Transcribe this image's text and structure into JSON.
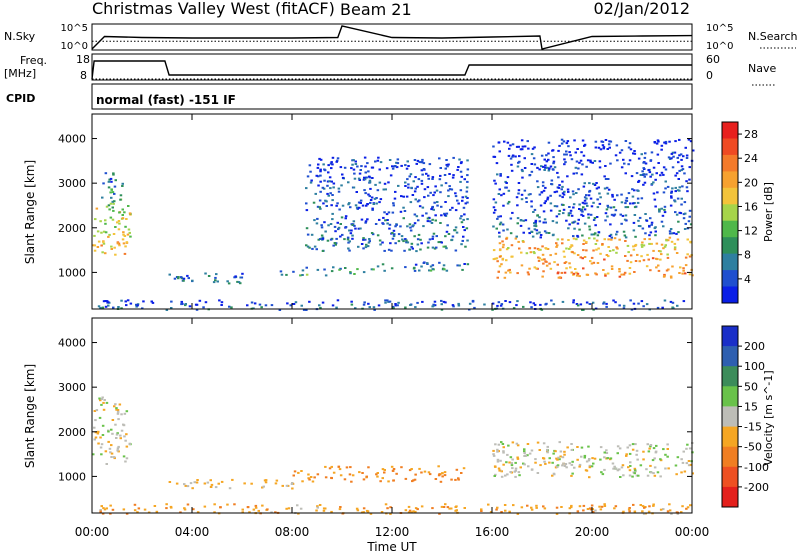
{
  "header": {
    "station": "Christmas Valley West (fitACF)",
    "beam": "Beam 21",
    "date": "02/Jan/2012"
  },
  "chart_data": [
    {
      "type": "line",
      "name": "noise-panel",
      "left_label": "N.Sky",
      "right_label": "N.Search",
      "left_ticks": [
        "10^5",
        "10^0"
      ],
      "right_ticks": [
        "10^5",
        "10^0"
      ],
      "series": [
        {
          "label_on_chart": "N.Sky",
          "style": "solid",
          "x": [
            "00:00",
            "00:30",
            "02:00",
            "04:00",
            "06:00",
            "08:00",
            "09:50",
            "10:00",
            "12:00",
            "14:00",
            "16:00",
            "17:55",
            "18:00",
            "20:00",
            "22:00",
            "24:00"
          ],
          "y_log10": [
            0.0,
            2.6,
            2.4,
            2.3,
            2.3,
            2.3,
            2.4,
            4.8,
            2.4,
            2.3,
            2.5,
            2.7,
            0.0,
            2.6,
            2.7,
            2.8
          ]
        },
        {
          "label_on_chart": "N.Search",
          "style": "dotted",
          "x": [
            "00:00",
            "06:00",
            "12:00",
            "18:00",
            "24:00"
          ],
          "y_log10": [
            1.6,
            1.6,
            1.6,
            1.6,
            1.6
          ]
        }
      ]
    },
    {
      "type": "line",
      "name": "freq-panel",
      "left_label": "Freq.",
      "left_unit": "[MHz]",
      "right_label": "Nave",
      "left_ticks": [
        "18",
        "8"
      ],
      "right_ticks": [
        "60",
        "0"
      ],
      "series": [
        {
          "label_on_chart": "Freq.",
          "style": "solid",
          "x": [
            "00:00",
            "00:05",
            "02:55",
            "03:05",
            "14:55",
            "15:05",
            "24:00"
          ],
          "y": [
            8,
            17,
            17,
            10,
            10,
            15,
            15
          ]
        },
        {
          "label_on_chart": "Nave",
          "style": "dotted",
          "x": [
            "00:00",
            "06:00",
            "12:00",
            "18:00",
            "24:00"
          ],
          "y": [
            8,
            8,
            8,
            8,
            8
          ]
        }
      ]
    },
    {
      "type": "text",
      "name": "cpid-panel",
      "left_label": "CPID",
      "text": "normal (fast) -151 IF"
    },
    {
      "type": "heatmap",
      "name": "power-panel",
      "ylabel": "Slant Range [km]",
      "yticks": [
        1000,
        2000,
        3000,
        4000
      ],
      "ylim": [
        180,
        4550
      ],
      "colorbar": {
        "label": "Power [dB]",
        "ticks": [
          "4",
          "8",
          "12",
          "16",
          "20",
          "24",
          "28"
        ],
        "colors": [
          "#0a1fe6",
          "#1f4fcf",
          "#2e7fa0",
          "#2e8f5a",
          "#4fb84a",
          "#a6d44a",
          "#f3c33a",
          "#f7a12f",
          "#f47a2a",
          "#ef4a23",
          "#e8201e"
        ]
      },
      "regions": [
        {
          "t0": 0.0,
          "t1": 1.5,
          "r0": 1300,
          "r1": 2600,
          "level": 20
        },
        {
          "t0": 0.3,
          "t1": 1.2,
          "r0": 2600,
          "r1": 3300,
          "level": 10
        },
        {
          "t0": 3.0,
          "t1": 6.0,
          "r0": 750,
          "r1": 1000,
          "level": 8
        },
        {
          "t0": 7.5,
          "t1": 11.0,
          "r0": 950,
          "r1": 1150,
          "level": 11
        },
        {
          "t0": 11.0,
          "t1": 15.0,
          "r0": 1050,
          "r1": 1250,
          "level": 9
        },
        {
          "t0": 8.5,
          "t1": 15.0,
          "r0": 1500,
          "r1": 3600,
          "level": 6
        },
        {
          "t0": 16.0,
          "t1": 24.0,
          "r0": 900,
          "r1": 1800,
          "level": 24
        },
        {
          "t0": 16.0,
          "t1": 24.0,
          "r0": 1800,
          "r1": 4000,
          "level": 5
        },
        {
          "t0": 0.0,
          "t1": 24.0,
          "r0": 180,
          "r1": 400,
          "level": 6
        }
      ]
    },
    {
      "type": "heatmap",
      "name": "velocity-panel",
      "ylabel": "Slant Range [km]",
      "yticks": [
        1000,
        2000,
        3000,
        4000
      ],
      "ylim": [
        180,
        4550
      ],
      "xlabel": "Time UT",
      "xticks": [
        "00:00",
        "04:00",
        "08:00",
        "12:00",
        "16:00",
        "20:00",
        "00:00"
      ],
      "colorbar": {
        "label": "Velocity [m s^-1]",
        "ticks": [
          "200",
          "100",
          "50",
          "15",
          "-15",
          "-50",
          "-100",
          "-200"
        ],
        "colors": [
          "#1a2fc8",
          "#2e5fb0",
          "#3c8c5a",
          "#69c24a",
          "#bdbdb7",
          "#f5a623",
          "#f07e22",
          "#ee5022",
          "#e4201c"
        ]
      },
      "regions": [
        {
          "t0": 0.0,
          "t1": 1.5,
          "r0": 1300,
          "r1": 2800,
          "level": 0
        },
        {
          "t0": 3.0,
          "t1": 8.0,
          "r0": 750,
          "r1": 950,
          "level": -20
        },
        {
          "t0": 8.0,
          "t1": 15.0,
          "r0": 900,
          "r1": 1250,
          "level": -60
        },
        {
          "t0": 16.0,
          "t1": 24.0,
          "r0": 1000,
          "r1": 1800,
          "level": 0
        },
        {
          "t0": 0.0,
          "t1": 24.0,
          "r0": 180,
          "r1": 400,
          "level": -40
        }
      ]
    }
  ]
}
